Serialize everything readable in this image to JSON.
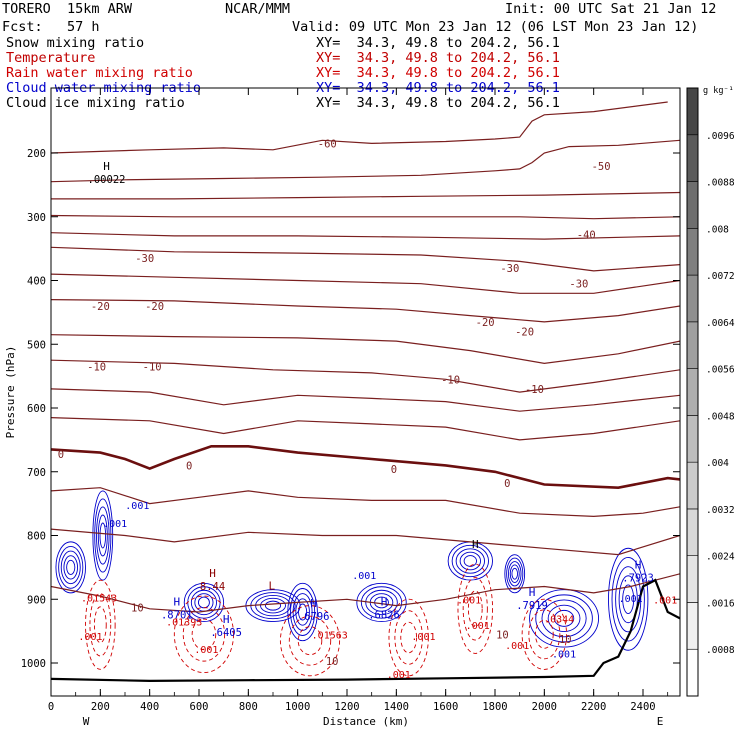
{
  "header": {
    "model": "TORERO  15km ARW",
    "center": "NCAR/MMM",
    "init": "Init: 00 UTC Sat 21 Jan 12",
    "fcst": "Fcst:   57 h",
    "valid": "Valid: 09 UTC Mon 23 Jan 12 (06 LST Mon 23 Jan 12)"
  },
  "fields": [
    {
      "name": "Snow mixing ratio",
      "xy": "XY=  34.3, 49.8 to 204.2, 56.1",
      "color": "#000000"
    },
    {
      "name": "Temperature",
      "xy": "XY=  34.3, 49.8 to 204.2, 56.1",
      "color": "#c00000"
    },
    {
      "name": "Rain water mixing ratio",
      "xy": "XY=  34.3, 49.8 to 204.2, 56.1",
      "color": "#d00000"
    },
    {
      "name": "Cloud water mixing ratio",
      "xy": "XY=  34.3, 49.8 to 204.2, 56.1",
      "color": "#0000cc"
    },
    {
      "name": "Cloud ice mixing ratio",
      "xy": "XY=  34.3, 49.8 to 204.2, 56.1",
      "color": "#000000"
    }
  ],
  "chart_data": {
    "type": "contour",
    "xlabel": "Distance (km)",
    "ylabel": "Pressure (hPa)",
    "x_ticks": [
      0,
      200,
      400,
      600,
      800,
      1000,
      1200,
      1400,
      1600,
      1800,
      2000,
      2200,
      2400
    ],
    "y_ticks": [
      200,
      300,
      400,
      500,
      600,
      700,
      800,
      900,
      1000
    ],
    "xlim": [
      0,
      2550
    ],
    "ylim": [
      1050,
      150
    ],
    "x_end_labels": {
      "left": "W",
      "right": "E"
    },
    "colorbar": {
      "unit": "g kg⁻¹",
      "ticks": [
        ".0008",
        ".0016",
        ".0024",
        ".0032",
        ".004",
        ".0048",
        ".0056",
        ".0064",
        ".0072",
        ".008",
        ".0088",
        ".0096"
      ],
      "colors": [
        "#ffffff",
        "#f0f0f0",
        "#e4e4e4",
        "#d8d8d8",
        "#cbcbcb",
        "#bdbdbd",
        "#aeaeae",
        "#9f9f9f",
        "#8f8f8f",
        "#7f7f7f",
        "#6e6e6e",
        "#5b5b5b",
        "#474747"
      ]
    },
    "temperature_colors": {
      "isotherm": "#7a1f1f",
      "zero": "#6b0f0f"
    },
    "temperature_labels": [
      {
        "text": "-60",
        "x": 1120,
        "p": 185
      },
      {
        "text": "-50",
        "x": 2230,
        "p": 220
      },
      {
        "text": "-40",
        "x": 2170,
        "p": 328
      },
      {
        "text": "-30",
        "x": 380,
        "p": 365
      },
      {
        "text": "-30",
        "x": 1860,
        "p": 380
      },
      {
        "text": "-30",
        "x": 2140,
        "p": 405
      },
      {
        "text": "-20",
        "x": 200,
        "p": 440
      },
      {
        "text": "-20",
        "x": 420,
        "p": 440
      },
      {
        "text": "-20",
        "x": 1760,
        "p": 465
      },
      {
        "text": "-20",
        "x": 1920,
        "p": 480
      },
      {
        "text": "-10",
        "x": 185,
        "p": 535
      },
      {
        "text": "-10",
        "x": 410,
        "p": 535
      },
      {
        "text": "-10",
        "x": 1620,
        "p": 555
      },
      {
        "text": "-10",
        "x": 1960,
        "p": 570
      },
      {
        "text": "0",
        "x": 40,
        "p": 672
      },
      {
        "text": "0",
        "x": 560,
        "p": 690
      },
      {
        "text": "0",
        "x": 1390,
        "p": 696
      },
      {
        "text": "0",
        "x": 1850,
        "p": 718
      },
      {
        "text": "10",
        "x": 350,
        "p": 913
      },
      {
        "text": "10",
        "x": 1140,
        "p": 997
      },
      {
        "text": "10",
        "x": 1830,
        "p": 955
      },
      {
        "text": "10",
        "x": 2085,
        "p": 962
      }
    ],
    "maxima_labels": [
      {
        "letter": "H",
        "value": ".00022",
        "x": 225,
        "p": 230,
        "color": "#000000"
      },
      {
        "letter": "H",
        "value": "8.44",
        "x": 655,
        "p": 868,
        "color": "#8b0000"
      },
      {
        "letter": "H",
        "value": ".8701",
        "x": 510,
        "p": 913,
        "color": "#0000cc"
      },
      {
        "letter": "H",
        "value": ".6405",
        "x": 710,
        "p": 940,
        "color": "#0000cc"
      },
      {
        "letter": "L",
        "value": "",
        "x": 895,
        "p": 888,
        "color": "#8b0000"
      },
      {
        "letter": "H",
        "value": ".6796",
        "x": 1065,
        "p": 915,
        "color": "#0000cc"
      },
      {
        "letter": "H",
        "value": ".6826",
        "x": 1350,
        "p": 913,
        "color": "#0000cc"
      },
      {
        "letter": "H",
        "value": "",
        "x": 1720,
        "p": 823,
        "color": "#000000"
      },
      {
        "letter": "H",
        "value": ".7919",
        "x": 1950,
        "p": 898,
        "color": "#0000cc"
      },
      {
        "letter": "H",
        "value": ".7923",
        "x": 2380,
        "p": 855,
        "color": "#0000cc"
      }
    ],
    "small_labels": [
      {
        "text": ".001",
        "x": 350,
        "p": 752,
        "color": "#0000cc"
      },
      {
        "text": ".001",
        "x": 260,
        "p": 780,
        "color": "#0000cc"
      },
      {
        "text": ".001",
        "x": 1270,
        "p": 862,
        "color": "#0000cc"
      },
      {
        "text": ".001",
        "x": 2350,
        "p": 898,
        "color": "#0000cc"
      },
      {
        "text": ".001",
        "x": 2080,
        "p": 985,
        "color": "#0000cc"
      },
      {
        "text": ".01543",
        "x": 195,
        "p": 897,
        "color": "#d00000"
      },
      {
        "text": ".001",
        "x": 160,
        "p": 958,
        "color": "#d00000"
      },
      {
        "text": ".001",
        "x": 630,
        "p": 978,
        "color": "#d00000"
      },
      {
        "text": ".01393",
        "x": 540,
        "p": 935,
        "color": "#d00000"
      },
      {
        "text": ".01563",
        "x": 1130,
        "p": 955,
        "color": "#d00000"
      },
      {
        "text": ".001",
        "x": 1410,
        "p": 1017,
        "color": "#d00000"
      },
      {
        "text": ".001",
        "x": 1510,
        "p": 958,
        "color": "#d00000"
      },
      {
        "text": ".001",
        "x": 1695,
        "p": 900,
        "color": "#d00000"
      },
      {
        "text": ".001",
        "x": 1730,
        "p": 940,
        "color": "#d00000"
      },
      {
        "text": ".0344",
        "x": 2060,
        "p": 930,
        "color": "#d00000"
      },
      {
        "text": ".001",
        "x": 1890,
        "p": 972,
        "color": "#d00000"
      },
      {
        "text": ".001",
        "x": 2490,
        "p": 900,
        "color": "#d00000"
      }
    ],
    "isotherms": [
      {
        "label": "-60",
        "x": [
          0,
          400,
          700,
          900,
          1100,
          1300,
          1600,
          1800,
          1900,
          1950,
          2000,
          2200,
          2500
        ],
        "p": [
          200,
          195,
          192,
          195,
          180,
          185,
          182,
          178,
          175,
          150,
          140,
          135,
          120
        ]
      },
      {
        "label": "-50",
        "x": [
          0,
          300,
          700,
          1100,
          1500,
          1800,
          1900,
          1950,
          2000,
          2100,
          2300,
          2550
        ],
        "p": [
          245,
          242,
          240,
          238,
          235,
          228,
          225,
          215,
          200,
          190,
          188,
          180
        ]
      },
      {
        "label": "",
        "x": [
          0,
          500,
          1000,
          1500,
          2000,
          2550
        ],
        "p": [
          272,
          272,
          270,
          268,
          266,
          262
        ]
      },
      {
        "label": "-40",
        "x": [
          0,
          500,
          1000,
          1500,
          1900,
          2200,
          2550
        ],
        "p": [
          298,
          300,
          300,
          300,
          300,
          303,
          300
        ]
      },
      {
        "label": "",
        "x": [
          0,
          500,
          1000,
          1500,
          2000,
          2550
        ],
        "p": [
          325,
          330,
          330,
          332,
          335,
          330
        ]
      },
      {
        "label": "-30",
        "x": [
          0,
          500,
          1000,
          1500,
          1900,
          2200,
          2550
        ],
        "p": [
          348,
          355,
          357,
          360,
          370,
          385,
          375
        ]
      },
      {
        "label": "",
        "x": [
          0,
          500,
          1000,
          1500,
          1900,
          2200,
          2550
        ],
        "p": [
          390,
          395,
          400,
          405,
          420,
          420,
          400
        ]
      },
      {
        "label": "-20",
        "x": [
          0,
          500,
          1000,
          1400,
          1700,
          2000,
          2300,
          2550
        ],
        "p": [
          430,
          432,
          440,
          445,
          455,
          465,
          455,
          440
        ]
      },
      {
        "label": "",
        "x": [
          0,
          500,
          1000,
          1400,
          1700,
          2000,
          2300,
          2550
        ],
        "p": [
          485,
          488,
          490,
          495,
          510,
          530,
          515,
          495
        ]
      },
      {
        "label": "-10",
        "x": [
          0,
          500,
          900,
          1300,
          1600,
          1900,
          2200,
          2550
        ],
        "p": [
          525,
          530,
          540,
          545,
          555,
          575,
          560,
          540
        ]
      },
      {
        "label": "",
        "x": [
          0,
          400,
          700,
          1000,
          1300,
          1600,
          1900,
          2200,
          2550
        ],
        "p": [
          570,
          575,
          595,
          580,
          585,
          590,
          605,
          595,
          580
        ]
      },
      {
        "label": "",
        "x": [
          0,
          400,
          700,
          1000,
          1300,
          1600,
          1900,
          2200,
          2550
        ],
        "p": [
          615,
          620,
          640,
          620,
          625,
          630,
          650,
          640,
          620
        ]
      },
      {
        "label": "0",
        "x": [
          0,
          200,
          300,
          400,
          500,
          650,
          800,
          1000,
          1300,
          1600,
          1800,
          2000,
          2300,
          2500,
          2550
        ],
        "p": [
          665,
          670,
          680,
          695,
          680,
          660,
          660,
          670,
          680,
          690,
          700,
          720,
          725,
          710,
          712
        ]
      },
      {
        "label": "",
        "x": [
          0,
          200,
          400,
          600,
          800,
          1000,
          1300,
          1600,
          1900,
          2200,
          2400,
          2550
        ],
        "p": [
          730,
          725,
          750,
          740,
          730,
          740,
          745,
          745,
          765,
          770,
          765,
          755
        ]
      },
      {
        "label": "",
        "x": [
          0,
          300,
          500,
          800,
          1100,
          1400,
          1700,
          2000,
          2300,
          2550
        ],
        "p": [
          790,
          800,
          810,
          795,
          800,
          800,
          810,
          820,
          830,
          800
        ]
      },
      {
        "label": "10",
        "x": [
          0,
          200,
          400,
          600,
          800,
          1000,
          1200,
          1400,
          1600,
          1800,
          2000,
          2200,
          2350,
          2550
        ],
        "p": [
          880,
          895,
          915,
          920,
          910,
          905,
          900,
          910,
          900,
          885,
          880,
          890,
          880,
          860
        ]
      }
    ],
    "freezing_level": {
      "x": [
        0,
        200,
        300,
        400,
        500,
        650,
        800,
        1000,
        1300,
        1600,
        1800,
        2000,
        2300,
        2500,
        2550
      ],
      "p": [
        665,
        670,
        680,
        695,
        680,
        660,
        660,
        670,
        680,
        690,
        700,
        720,
        725,
        710,
        712
      ]
    },
    "terrain": {
      "x": [
        0,
        400,
        800,
        1200,
        1600,
        2000,
        2200,
        2240,
        2300,
        2350,
        2400,
        2450,
        2500,
        2550
      ],
      "p": [
        1025,
        1028,
        1027,
        1026,
        1024,
        1022,
        1020,
        1000,
        990,
        950,
        880,
        870,
        920,
        930
      ]
    },
    "cloud_water_regions": [
      {
        "x": 80,
        "p": 850,
        "rx": 60,
        "rp": 40
      },
      {
        "x": 210,
        "p": 800,
        "rx": 40,
        "rp": 70
      },
      {
        "x": 620,
        "p": 905,
        "rx": 80,
        "rp": 30
      },
      {
        "x": 900,
        "p": 910,
        "rx": 110,
        "rp": 25
      },
      {
        "x": 1020,
        "p": 920,
        "rx": 60,
        "rp": 45
      },
      {
        "x": 1340,
        "p": 905,
        "rx": 100,
        "rp": 30
      },
      {
        "x": 1700,
        "p": 840,
        "rx": 90,
        "rp": 30
      },
      {
        "x": 1880,
        "p": 860,
        "rx": 40,
        "rp": 30
      },
      {
        "x": 2080,
        "p": 930,
        "rx": 140,
        "rp": 45
      },
      {
        "x": 2340,
        "p": 900,
        "rx": 80,
        "rp": 80
      }
    ],
    "rain_regions": [
      {
        "x": 200,
        "p": 940,
        "rx": 60,
        "rp": 70
      },
      {
        "x": 620,
        "p": 955,
        "rx": 120,
        "rp": 60
      },
      {
        "x": 1050,
        "p": 965,
        "rx": 120,
        "rp": 55
      },
      {
        "x": 1450,
        "p": 960,
        "rx": 80,
        "rp": 60
      },
      {
        "x": 1720,
        "p": 915,
        "rx": 70,
        "rp": 70
      },
      {
        "x": 2000,
        "p": 955,
        "rx": 90,
        "rp": 55
      }
    ]
  }
}
